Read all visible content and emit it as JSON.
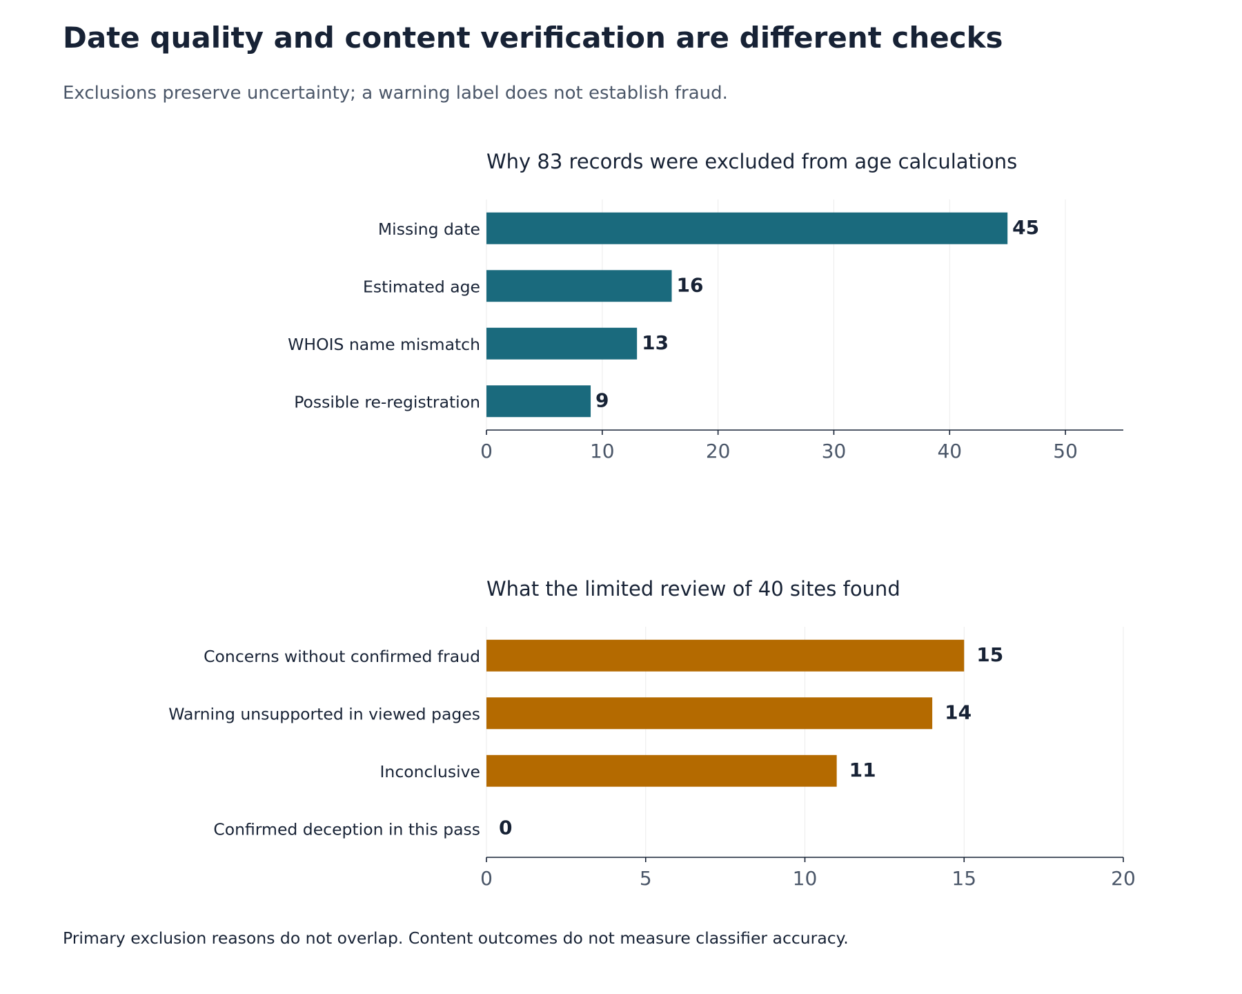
{
  "title": "Date quality and content verification are different checks",
  "subtitle": "Exclusions preserve uncertainty; a warning label does not establish fraud.",
  "footnote": "Primary exclusion reasons do not overlap. Content outcomes do not measure classifier accuracy.",
  "chart_data": [
    {
      "type": "bar",
      "orientation": "horizontal",
      "title": "Why 83 records were excluded from age calculations",
      "categories": [
        "Missing date",
        "Estimated age",
        "WHOIS name mismatch",
        "Possible re-registration"
      ],
      "values": [
        45,
        16,
        13,
        9
      ],
      "xlim": [
        0,
        55
      ],
      "xticks": [
        0,
        10,
        20,
        30,
        40,
        50
      ],
      "color": "#1a6a7d",
      "grid": "vertical",
      "xlabel": "",
      "ylabel": ""
    },
    {
      "type": "bar",
      "orientation": "horizontal",
      "title": "What the limited review of 40 sites found",
      "categories": [
        "Concerns without confirmed fraud",
        "Warning unsupported in viewed pages",
        "Inconclusive",
        "Confirmed deception in this pass"
      ],
      "values": [
        15,
        14,
        11,
        0
      ],
      "xlim": [
        0,
        20
      ],
      "xticks": [
        0,
        5,
        10,
        15,
        20
      ],
      "color": "#b46a00",
      "grid": "vertical",
      "xlabel": "",
      "ylabel": ""
    }
  ]
}
